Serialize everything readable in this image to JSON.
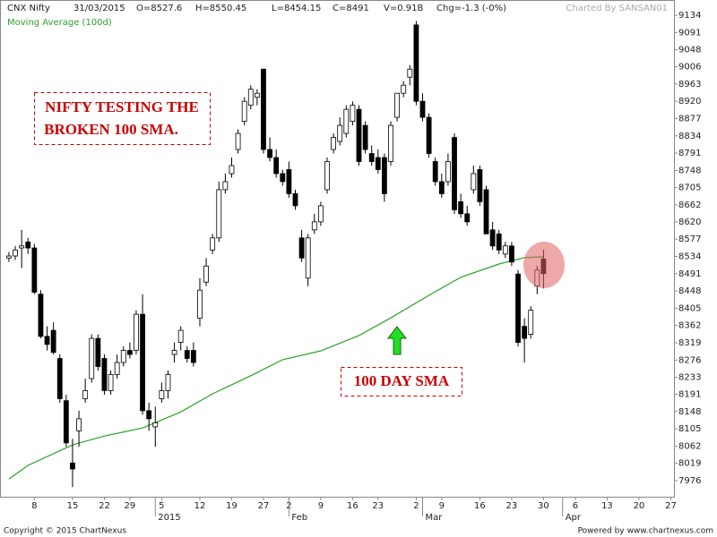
{
  "header": {
    "symbol": "CNX Nifty",
    "date": "31/03/2015",
    "open": "O=8527.6",
    "high": "H=8550.45",
    "low": "L=8454.15",
    "close": "C=8491",
    "volume": "V=0.91B",
    "change": "Chg=-1.3 (-0%)",
    "credit": "Charted By SANSAN01"
  },
  "chart_data": {
    "type": "candlestick",
    "x": [
      0,
      1,
      2,
      3,
      4,
      5,
      6,
      7,
      8,
      9,
      10,
      11,
      12,
      13,
      14,
      15,
      16,
      17,
      18,
      19,
      20,
      21,
      22,
      23,
      24,
      25,
      26,
      27,
      28,
      29,
      30,
      31,
      32,
      33,
      34,
      35,
      36,
      37,
      38,
      39,
      40,
      41,
      42,
      43,
      44,
      45,
      46,
      47,
      48,
      49,
      50,
      51,
      52,
      53,
      54,
      55,
      56,
      57,
      58,
      59,
      60,
      61,
      62,
      63,
      64,
      65,
      66,
      67,
      68,
      69,
      70,
      71,
      72,
      73,
      74,
      75,
      76,
      77,
      78,
      79,
      80,
      81,
      82,
      83,
      84
    ],
    "open": [
      8530,
      8535,
      8555,
      8570,
      8555,
      8440,
      8335,
      8350,
      8280,
      8175,
      8020,
      8100,
      8180,
      8230,
      8330,
      8280,
      8200,
      8240,
      8270,
      8300,
      8300,
      8390,
      8150,
      8110,
      8180,
      8200,
      8290,
      8320,
      8300,
      8300,
      8380,
      8470,
      8550,
      8580,
      8700,
      8740,
      8800,
      8870,
      8910,
      8930,
      9000,
      8800,
      8780,
      8740,
      8750,
      8690,
      8580,
      8480,
      8600,
      8620,
      8700,
      8800,
      8820,
      8840,
      8870,
      8900,
      8860,
      8790,
      8780,
      8780,
      8770,
      8880,
      8940,
      8980,
      9110,
      8920,
      8880,
      8770,
      8720,
      8720,
      8830,
      8670,
      8640,
      8700,
      8750,
      8700,
      8600,
      8590,
      8540,
      8560,
      8490,
      8360,
      8340,
      8460,
      8527.6
    ],
    "high": [
      8545,
      8560,
      8600,
      8580,
      8565,
      8450,
      8360,
      8370,
      8290,
      8190,
      8080,
      8150,
      8230,
      8340,
      8340,
      8290,
      8250,
      8290,
      8310,
      8320,
      8400,
      8440,
      8170,
      8160,
      8220,
      8250,
      8320,
      8360,
      8310,
      8320,
      8480,
      8530,
      8590,
      8720,
      8740,
      8780,
      8850,
      8930,
      8960,
      8950,
      9000,
      8830,
      8800,
      8750,
      8770,
      8700,
      8600,
      8590,
      8640,
      8670,
      8780,
      8840,
      8880,
      8910,
      8920,
      8910,
      8870,
      8810,
      8800,
      8790,
      8870,
      8940,
      8970,
      9010,
      9120,
      8940,
      8890,
      8780,
      8740,
      8790,
      8840,
      8690,
      8660,
      8760,
      8760,
      8710,
      8620,
      8600,
      8570,
      8570,
      8500,
      8380,
      8410,
      8510,
      8550.45
    ],
    "low": [
      8520,
      8525,
      8505,
      8540,
      8440,
      8330,
      8300,
      8290,
      8170,
      8060,
      7960,
      8060,
      8170,
      8220,
      8250,
      8190,
      8190,
      8230,
      8260,
      8280,
      8290,
      8140,
      8100,
      8060,
      8170,
      8180,
      8270,
      8300,
      8270,
      8260,
      8360,
      8460,
      8540,
      8570,
      8690,
      8730,
      8790,
      8860,
      8900,
      8910,
      8790,
      8770,
      8730,
      8710,
      8680,
      8650,
      8520,
      8460,
      8590,
      8610,
      8690,
      8790,
      8810,
      8830,
      8860,
      8760,
      8790,
      8760,
      8740,
      8670,
      8760,
      8870,
      8930,
      8960,
      8910,
      8870,
      8780,
      8710,
      8680,
      8710,
      8640,
      8630,
      8610,
      8690,
      8660,
      8590,
      8550,
      8540,
      8530,
      8510,
      8310,
      8270,
      8330,
      8440,
      8454.15
    ],
    "close": [
      8535,
      8550,
      8560,
      8555,
      8445,
      8335,
      8315,
      8295,
      8180,
      8070,
      8005,
      8130,
      8200,
      8330,
      8260,
      8200,
      8240,
      8270,
      8300,
      8290,
      8390,
      8150,
      8130,
      8120,
      8200,
      8240,
      8300,
      8350,
      8280,
      8270,
      8450,
      8510,
      8580,
      8700,
      8720,
      8760,
      8840,
      8920,
      8950,
      8940,
      8800,
      8780,
      8740,
      8720,
      8690,
      8660,
      8530,
      8580,
      8620,
      8660,
      8770,
      8830,
      8860,
      8900,
      8910,
      8770,
      8800,
      8770,
      8750,
      8690,
      8860,
      8940,
      8960,
      9000,
      8920,
      8880,
      8790,
      8720,
      8690,
      8770,
      8650,
      8640,
      8620,
      8740,
      8670,
      8590,
      8560,
      8550,
      8560,
      8520,
      8320,
      8330,
      8400,
      8500,
      8491
    ],
    "up_color": "#ffffff",
    "down_color": "#000000",
    "moving_average": {
      "name": "Moving Average (100d)",
      "color": "#2ca02c",
      "x": [
        0,
        3,
        10,
        15,
        21,
        27,
        32,
        38,
        43,
        49,
        55,
        60,
        66,
        71,
        77,
        81,
        84
      ],
      "values": [
        7980,
        8014,
        8065,
        8087,
        8107,
        8147,
        8192,
        8237,
        8277,
        8299,
        8337,
        8381,
        8437,
        8482,
        8515,
        8531,
        8533
      ]
    },
    "xlim": [
      -1.4,
      104.5
    ],
    "xticks": [
      {
        "value": 4,
        "label": "8"
      },
      {
        "value": 10,
        "label": "15"
      },
      {
        "value": 15,
        "label": "22"
      },
      {
        "value": 19,
        "label": "29"
      },
      {
        "value": 24,
        "label": "5"
      },
      {
        "value": 30,
        "label": "12"
      },
      {
        "value": 35,
        "label": "19"
      },
      {
        "value": 40,
        "label": "27"
      },
      {
        "value": 44,
        "label": "2"
      },
      {
        "value": 49,
        "label": "9"
      },
      {
        "value": 54,
        "label": "16"
      },
      {
        "value": 58,
        "label": "23"
      },
      {
        "value": 64,
        "label": "2"
      },
      {
        "value": 68,
        "label": "9"
      },
      {
        "value": 74,
        "label": "16"
      },
      {
        "value": 79,
        "label": "23"
      },
      {
        "value": 84,
        "label": "30"
      },
      {
        "value": 89,
        "label": "6"
      },
      {
        "value": 94,
        "label": "13"
      },
      {
        "value": 99,
        "label": "20"
      },
      {
        "value": 104,
        "label": "27"
      }
    ],
    "month_labels": [
      {
        "value": 23,
        "label": "2015"
      },
      {
        "value": 44,
        "label": "Feb"
      },
      {
        "value": 65,
        "label": "Mar"
      },
      {
        "value": 87,
        "label": "Apr"
      }
    ],
    "ylim": [
      7936,
      9172
    ],
    "yticks": [
      9134,
      9091,
      9048,
      9006,
      8963,
      8920,
      8877,
      8834,
      8791,
      8748,
      8705,
      8662,
      8620,
      8577,
      8534,
      8491,
      8448,
      8405,
      8362,
      8319,
      8276,
      8233,
      8191,
      8148,
      8105,
      8062,
      8019,
      7976
    ],
    "annotations": [
      "NIFTY TESTING THE",
      "BROKEN 100 SMA.",
      "100 DAY SMA"
    ]
  },
  "footer": {
    "copyright": "Copyright © 2015 ChartNexus",
    "powered": "Powered by www.chartnexus.com"
  }
}
